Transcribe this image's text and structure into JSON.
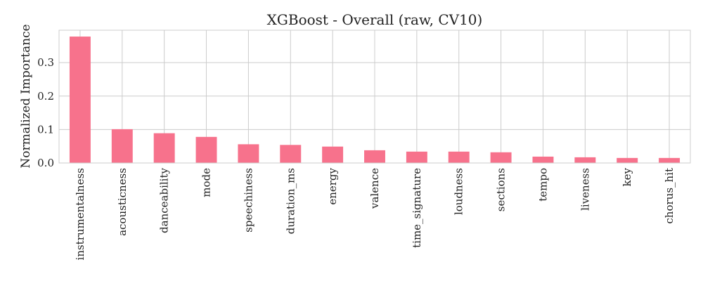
{
  "chart_data": {
    "type": "bar",
    "title": "XGBoost - Overall (raw, CV10)",
    "xlabel": "",
    "ylabel": "Normalized Importance",
    "categories": [
      "instrumentalness",
      "acousticness",
      "danceability",
      "mode",
      "speechiness",
      "duration_ms",
      "energy",
      "valence",
      "time_signature",
      "loudness",
      "sections",
      "tempo",
      "liveness",
      "key",
      "chorus_hit"
    ],
    "values": [
      0.378,
      0.101,
      0.089,
      0.078,
      0.056,
      0.054,
      0.049,
      0.038,
      0.034,
      0.034,
      0.032,
      0.019,
      0.017,
      0.015,
      0.015
    ],
    "yticks": [
      0.0,
      0.1,
      0.2,
      0.3
    ],
    "ytick_labels": [
      "0.0",
      "0.1",
      "0.2",
      "0.3"
    ],
    "ylim": [
      0,
      0.397
    ],
    "grid": true,
    "bar_color": "#f7728c",
    "grid_color": "#cccccc"
  }
}
